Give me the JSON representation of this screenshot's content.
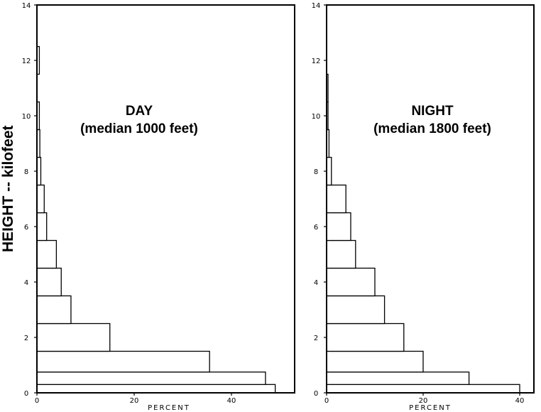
{
  "ylabel": "HEIGHT -- kilofeet",
  "chart_data": [
    {
      "type": "bar",
      "orientation": "horizontal",
      "title": "DAY",
      "subtitle": "(median 1000 feet)",
      "xlabel": "PERCENT",
      "ylabel": "HEIGHT -- kilofeet",
      "xlim": [
        0,
        50
      ],
      "ylim": [
        0,
        14
      ],
      "xticks": [
        0,
        20,
        40
      ],
      "yticks": [
        0,
        2,
        4,
        6,
        8,
        10,
        12,
        14
      ],
      "bins": [
        {
          "from": 0.0,
          "to": 0.3,
          "value": 49
        },
        {
          "from": 0.3,
          "to": 0.75,
          "value": 47
        },
        {
          "from": 0.75,
          "to": 1.5,
          "value": 35.5
        },
        {
          "from": 1.5,
          "to": 2.5,
          "value": 15
        },
        {
          "from": 2.5,
          "to": 3.5,
          "value": 7
        },
        {
          "from": 3.5,
          "to": 4.5,
          "value": 5
        },
        {
          "from": 4.5,
          "to": 5.5,
          "value": 4
        },
        {
          "from": 5.5,
          "to": 6.5,
          "value": 2
        },
        {
          "from": 6.5,
          "to": 7.5,
          "value": 1.5
        },
        {
          "from": 7.5,
          "to": 8.5,
          "value": 0.8
        },
        {
          "from": 8.5,
          "to": 9.5,
          "value": 0.6
        },
        {
          "from": 9.5,
          "to": 10.5,
          "value": 0.5
        },
        {
          "from": 11.5,
          "to": 12.5,
          "value": 0.5
        }
      ],
      "grid": false
    },
    {
      "type": "bar",
      "orientation": "horizontal",
      "title": "NIGHT",
      "subtitle": "(median 1800 feet)",
      "xlabel": "PERCENT",
      "ylabel": "",
      "xlim": [
        0,
        43
      ],
      "ylim": [
        0,
        14
      ],
      "xticks": [
        0,
        20,
        40
      ],
      "yticks": [
        0,
        2,
        4,
        6,
        8,
        10,
        12,
        14
      ],
      "bins": [
        {
          "from": 0.0,
          "to": 0.3,
          "value": 40
        },
        {
          "from": 0.3,
          "to": 0.75,
          "value": 29.5
        },
        {
          "from": 0.75,
          "to": 1.5,
          "value": 20
        },
        {
          "from": 1.5,
          "to": 2.5,
          "value": 16
        },
        {
          "from": 2.5,
          "to": 3.5,
          "value": 12
        },
        {
          "from": 3.5,
          "to": 4.5,
          "value": 10
        },
        {
          "from": 4.5,
          "to": 5.5,
          "value": 6
        },
        {
          "from": 5.5,
          "to": 6.5,
          "value": 5
        },
        {
          "from": 6.5,
          "to": 7.5,
          "value": 4
        },
        {
          "from": 7.5,
          "to": 8.5,
          "value": 1
        },
        {
          "from": 8.5,
          "to": 9.5,
          "value": 0.5
        },
        {
          "from": 9.5,
          "to": 10.5,
          "value": 0.3
        },
        {
          "from": 10.5,
          "to": 11.5,
          "value": 0.3
        }
      ],
      "grid": false
    }
  ]
}
